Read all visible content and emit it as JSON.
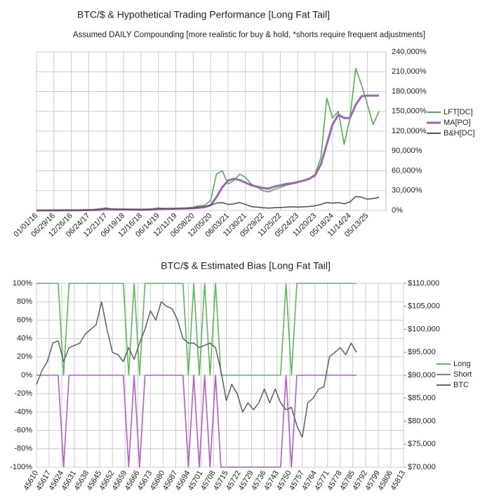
{
  "chart_data": [
    {
      "type": "line",
      "title": "BTC/$ & Hypothetical Trading Performance [Long Fat Tail]",
      "subtitle": "Assumed DAILY Compounding [more realistic for buy & hold, *shorts require frequent adjustments]",
      "categories": [
        "01/01/16",
        null,
        null,
        "06/29/16",
        null,
        null,
        "12/26/16",
        null,
        null,
        "06/24/17",
        null,
        null,
        "12/21/17",
        null,
        null,
        "06/19/18",
        null,
        null,
        "12/16/18",
        null,
        null,
        "06/14/19",
        null,
        null,
        "12/11/19",
        null,
        null,
        "06/08/20",
        null,
        null,
        "12/05/20",
        null,
        null,
        "06/03/21",
        null,
        null,
        "11/30/21",
        null,
        null,
        "05/29/22",
        null,
        null,
        "11/25/22",
        null,
        null,
        "05/24/23",
        null,
        null,
        "11/20/23",
        null,
        null,
        "05/18/24",
        null,
        null,
        "11/14/24",
        null,
        null,
        "05/13/25",
        null,
        null
      ],
      "series": [
        {
          "name": "LFT[DC]",
          "color": "#4db34d",
          "values": [
            0,
            50,
            100,
            150,
            200,
            300,
            400,
            500,
            700,
            1000,
            1500,
            2500,
            3500,
            2000,
            1800,
            1500,
            1400,
            1300,
            1200,
            1800,
            2500,
            3500,
            3000,
            2800,
            3000,
            3500,
            4000,
            5000,
            7000,
            8000,
            15000,
            55000,
            60000,
            40000,
            45000,
            55000,
            50000,
            40000,
            35000,
            30000,
            28000,
            32000,
            35000,
            38000,
            40000,
            42000,
            45000,
            48000,
            55000,
            80000,
            170000,
            140000,
            150000,
            100000,
            140000,
            215000,
            190000,
            160000,
            130000,
            150000
          ]
        },
        {
          "name": "MA[PO]",
          "color": "#a066b4",
          "values": [
            0,
            20,
            50,
            80,
            120,
            160,
            200,
            300,
            400,
            500,
            700,
            1000,
            1500,
            1700,
            1700,
            1600,
            1500,
            1400,
            1300,
            1400,
            1600,
            2000,
            2400,
            2600,
            2800,
            3000,
            3200,
            3500,
            4000,
            5000,
            8000,
            20000,
            35000,
            45000,
            48000,
            46000,
            42000,
            38000,
            36000,
            34000,
            33000,
            36000,
            38000,
            40000,
            41000,
            43000,
            45000,
            48000,
            53000,
            70000,
            100000,
            130000,
            145000,
            140000,
            140000,
            160000,
            173000,
            174000,
            174000,
            174000
          ]
        },
        {
          "name": "B&H[DC]",
          "color": "#555555",
          "values": [
            0,
            20,
            40,
            60,
            80,
            100,
            150,
            200,
            300,
            500,
            800,
            1500,
            3500,
            1500,
            1200,
            1000,
            900,
            800,
            700,
            1000,
            1500,
            3000,
            2500,
            2000,
            2200,
            2500,
            2800,
            3500,
            5000,
            6000,
            8000,
            11000,
            12000,
            9000,
            10000,
            12000,
            9000,
            6000,
            5000,
            4000,
            3500,
            4000,
            4500,
            5000,
            5500,
            5000,
            5500,
            6000,
            7000,
            9000,
            12000,
            11000,
            12000,
            10000,
            13000,
            21000,
            20000,
            17000,
            18000,
            20000
          ]
        }
      ],
      "ylim": [
        0,
        240000
      ],
      "yticks": [
        {
          "value": 0,
          "label": "0%"
        },
        {
          "value": 30000,
          "label": "30,000%"
        },
        {
          "value": 60000,
          "label": "60,000%"
        },
        {
          "value": 90000,
          "label": "90,000%"
        },
        {
          "value": 120000,
          "label": "120,000%"
        },
        {
          "value": 150000,
          "label": "150,000%"
        },
        {
          "value": 180000,
          "label": "180,000%"
        },
        {
          "value": 210000,
          "label": "210,000%"
        },
        {
          "value": 240000,
          "label": "240,000%"
        }
      ],
      "y_axis_side": "right",
      "grid": true,
      "legend": "right"
    },
    {
      "type": "line",
      "title": "BTC/$ & Estimated Bias [Long Fat Tail]",
      "x": [
        45610,
        45613,
        45616,
        45619,
        45622,
        45625,
        45628,
        45631,
        45634,
        45637,
        45640,
        45643,
        45646,
        45649,
        45652,
        45655,
        45658,
        45661,
        45664,
        45667,
        45670,
        45673,
        45676,
        45679,
        45682,
        45685,
        45688,
        45691,
        45694,
        45697,
        45700,
        45703,
        45706,
        45709,
        45712,
        45715,
        45718,
        45721,
        45724,
        45727,
        45730,
        45733,
        45736,
        45739,
        45742,
        45745,
        45748,
        45751,
        45754,
        45757,
        45760,
        45763,
        45766,
        45769,
        45772,
        45775,
        45778,
        45781,
        45784,
        45787
      ],
      "series": [
        {
          "name": "Long",
          "color": "#5cb85c",
          "values": [
            100,
            100,
            100,
            100,
            100,
            0,
            100,
            100,
            100,
            100,
            100,
            100,
            100,
            100,
            100,
            100,
            100,
            0,
            100,
            0,
            100,
            100,
            100,
            100,
            100,
            100,
            100,
            100,
            0,
            100,
            0,
            100,
            0,
            100,
            0,
            0,
            0,
            0,
            0,
            0,
            0,
            0,
            0,
            0,
            0,
            0,
            100,
            0,
            100,
            100,
            100,
            100,
            100,
            100,
            100,
            100,
            100,
            100,
            100,
            100
          ]
        },
        {
          "name": "Short",
          "color": "#b45cc8",
          "values": [
            0,
            0,
            0,
            0,
            0,
            -100,
            0,
            0,
            0,
            0,
            0,
            0,
            0,
            0,
            0,
            0,
            0,
            -100,
            0,
            -100,
            0,
            0,
            0,
            0,
            0,
            0,
            0,
            0,
            -100,
            0,
            -100,
            0,
            -100,
            0,
            -100,
            -100,
            -100,
            -100,
            -100,
            -100,
            -100,
            -100,
            -100,
            -100,
            -100,
            -100,
            0,
            -100,
            0,
            0,
            0,
            0,
            0,
            0,
            0,
            0,
            0,
            0,
            0,
            0
          ]
        },
        {
          "name": "BTC",
          "color": "#666666",
          "axis": "y2",
          "values": [
            88000,
            91000,
            93000,
            97000,
            97500,
            93000,
            96000,
            96500,
            97000,
            99000,
            100000,
            101000,
            106000,
            100000,
            95000,
            94500,
            93000,
            96000,
            93500,
            97000,
            100000,
            104000,
            102000,
            106000,
            105000,
            104500,
            102000,
            98000,
            97000,
            97000,
            96000,
            96500,
            97000,
            96000,
            91000,
            84500,
            88000,
            86000,
            82000,
            84000,
            82500,
            84000,
            87000,
            84000,
            87000,
            84000,
            82500,
            83000,
            79000,
            76500,
            84000,
            85000,
            87000,
            87500,
            94000,
            95000,
            96000,
            94500,
            97000,
            95000
          ]
        }
      ],
      "xlim": [
        45610,
        45813
      ],
      "xticks": [
        45610,
        45617,
        45624,
        45631,
        45638,
        45645,
        45652,
        45659,
        45666,
        45673,
        45680,
        45687,
        45694,
        45701,
        45708,
        45715,
        45722,
        45729,
        45736,
        45743,
        45750,
        45757,
        45764,
        45771,
        45778,
        45785,
        45792,
        45799,
        45806,
        45813
      ],
      "ylim": [
        -100,
        100
      ],
      "yticks": [
        {
          "value": -100,
          "label": "-100%"
        },
        {
          "value": -80,
          "label": "-80%"
        },
        {
          "value": -60,
          "label": "-60%"
        },
        {
          "value": -40,
          "label": "-40%"
        },
        {
          "value": -20,
          "label": "-20%"
        },
        {
          "value": 0,
          "label": "0%"
        },
        {
          "value": 20,
          "label": "20%"
        },
        {
          "value": 40,
          "label": "40%"
        },
        {
          "value": 60,
          "label": "60%"
        },
        {
          "value": 80,
          "label": "80%"
        },
        {
          "value": 100,
          "label": "100%"
        }
      ],
      "y2lim": [
        70000,
        110000
      ],
      "y2ticks": [
        {
          "value": 70000,
          "label": "$70,000"
        },
        {
          "value": 75000,
          "label": "$75,000"
        },
        {
          "value": 80000,
          "label": "$80,000"
        },
        {
          "value": 85000,
          "label": "$85,000"
        },
        {
          "value": 90000,
          "label": "$90,000"
        },
        {
          "value": 95000,
          "label": "$95,000"
        },
        {
          "value": 100000,
          "label": "$100,000"
        },
        {
          "value": 105000,
          "label": "$105,000"
        },
        {
          "value": 110000,
          "label": "$110,000"
        }
      ],
      "grid": true,
      "legend": "right"
    }
  ]
}
